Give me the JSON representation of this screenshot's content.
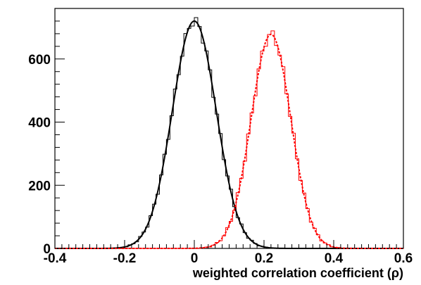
{
  "chart_data": {
    "type": "histogram",
    "xlabel": "weighted correlation coefficient (ρ)",
    "ylabel": "",
    "xlim": [
      -0.4,
      0.6
    ],
    "ylim": [
      0,
      760
    ],
    "x_ticks": [
      -0.4,
      -0.2,
      0,
      0.2,
      0.4,
      0.6
    ],
    "x_tick_labels": [
      "-0.4",
      "-0.2",
      "0",
      "0.2",
      "0.4",
      "0.6"
    ],
    "y_ticks": [
      0,
      200,
      400,
      600
    ],
    "y_tick_labels": [
      "0",
      "200",
      "400",
      "600"
    ],
    "grid": false,
    "legend": "none",
    "series": [
      {
        "histogram": {
          "mean": 0.0,
          "sigma": 0.063,
          "amplitude": 720,
          "bin_width": 0.01
        },
        "fit": {
          "kind": "gaussian",
          "mean": 0.0,
          "sigma": 0.063,
          "amplitude": 720,
          "style": "solid"
        },
        "color": "#000000"
      },
      {
        "histogram": {
          "mean": 0.22,
          "sigma": 0.057,
          "amplitude": 678,
          "bin_width": 0.01
        },
        "fit": {
          "kind": "gaussian",
          "mean": 0.22,
          "sigma": 0.057,
          "amplitude": 678,
          "style": "dashed"
        },
        "color": "#ff0000"
      }
    ]
  }
}
